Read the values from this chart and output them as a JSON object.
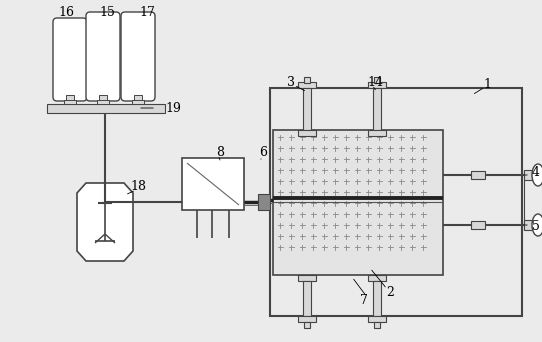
{
  "bg_color": "#ebebeb",
  "line_color": "#666666",
  "dark_line": "#444444",
  "white_fill": "#ffffff",
  "light_fill": "#d8d8d8",
  "dot_fill": "#cccccc",
  "block_fill": "#e4e4e4"
}
